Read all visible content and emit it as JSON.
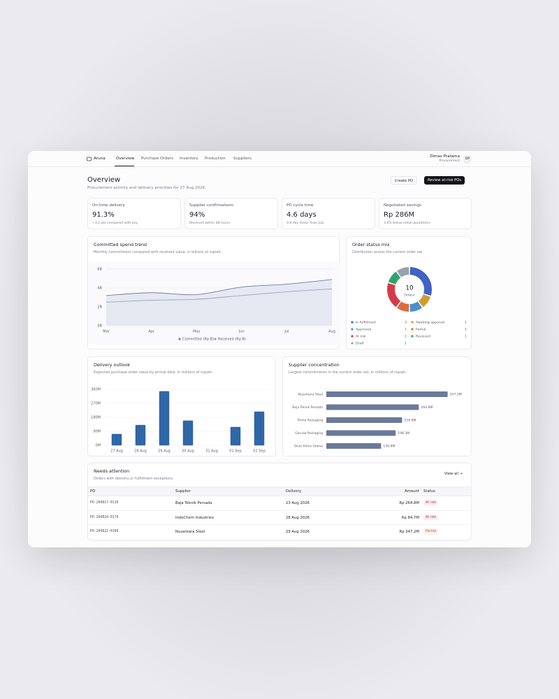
{
  "nav": {
    "brand": "Aruna",
    "tabs": [
      "Overview",
      "Purchase Orders",
      "Inventory",
      "Production",
      "Suppliers"
    ],
    "user": {
      "name": "Dimas Pratama",
      "role": "Procurement",
      "initials": "DP"
    }
  },
  "header": {
    "title": "Overview",
    "subtitle": "Procurement activity and delivery priorities for 27 Aug 2026.",
    "actions": [
      "Create PO",
      "Review at-risk POs"
    ]
  },
  "kpis": [
    {
      "label": "On-time delivery",
      "value": "91.3%",
      "note": "+3.2 pts compared with July"
    },
    {
      "label": "Supplier confirmations",
      "value": "94%",
      "note": "Received within 48 hours"
    },
    {
      "label": "PO cycle time",
      "value": "4.6 days",
      "note": "0.8 day faster than July"
    },
    {
      "label": "Negotiated savings",
      "value": "Rp 286M",
      "note": "3.6% below initial quotations"
    }
  ],
  "chart_data": [
    {
      "type": "line",
      "title": "Committed spend trend",
      "subtitle": "Monthly commitment compared with received value, in billions of rupiah.",
      "categories": [
        "Mar",
        "Apr",
        "May",
        "Jun",
        "Jul",
        "Aug"
      ],
      "ylim": [
        0,
        6
      ],
      "yticks": [
        {
          "value": 0,
          "label": "0B"
        },
        {
          "value": 2,
          "label": "2B"
        },
        {
          "value": 4,
          "label": "4B"
        },
        {
          "value": 6,
          "label": "6B"
        }
      ],
      "grid": true,
      "series": [
        {
          "name": "Committed (Rp B)",
          "color": "#6f7ea0",
          "fill": "#e6e8f2",
          "values": [
            3.2,
            3.5,
            3.3,
            4.1,
            4.4,
            4.9
          ]
        },
        {
          "name": "Received (Rp B)",
          "color": "#9ba2ba",
          "values": [
            2.5,
            2.7,
            2.8,
            3.2,
            3.6,
            3.9
          ]
        }
      ]
    },
    {
      "type": "donut",
      "title": "Order status mix",
      "subtitle": "Distribution across the current order set.",
      "total": 10,
      "total_label": "Orders",
      "categories": [
        "In fulfillment",
        "Awaiting approval",
        "Approved",
        "Partial",
        "At risk",
        "Received",
        "Draft"
      ],
      "values": [
        3,
        1,
        1,
        1,
        2,
        1,
        1
      ],
      "colors": [
        "#3f63c6",
        "#d39b2c",
        "#4b8fd0",
        "#de6b3e",
        "#d63a4a",
        "#2fa36b",
        "#9aa0ad"
      ]
    },
    {
      "type": "bar",
      "title": "Delivery outlook",
      "subtitle": "Expected purchase-order value by arrival date, in millions of rupiah.",
      "categories": [
        "27 Aug",
        "28 Aug",
        "29 Aug",
        "30 Aug",
        "31 Aug",
        "01 Sep",
        "02 Sep"
      ],
      "values": [
        72,
        130,
        347.2,
        158,
        0,
        117,
        216
      ],
      "color": "#2f68a8",
      "ylim": [
        0,
        360
      ],
      "yticks": [
        {
          "value": 0,
          "label": "0M"
        },
        {
          "value": 90,
          "label": "90M"
        },
        {
          "value": 180,
          "label": "180M"
        },
        {
          "value": 270,
          "label": "270M"
        },
        {
          "value": 360,
          "label": "360M"
        }
      ],
      "grid": true
    },
    {
      "type": "hbar",
      "title": "Supplier concentration",
      "subtitle": "Largest commitments in the current order set, in millions of rupiah.",
      "categories": [
        "Nusantara Steel",
        "Baja Teknik Persada",
        "Prima Packaging",
        "Garuda Packaging",
        "Sinar Kimia Utama"
      ],
      "values": [
        347.2,
        264.8,
        216.8,
        198.3,
        156.8
      ],
      "value_labels": [
        "347.2M",
        "264.8M",
        "216.8M",
        "198.3M",
        "156.8M"
      ],
      "color": "#6b7a99",
      "xlim": [
        0,
        350
      ],
      "grid": true
    }
  ],
  "attention": {
    "title": "Needs attention",
    "subtitle": "Orders with delivery or fulfillment exceptions.",
    "link": "View all",
    "columns": [
      "PO",
      "Supplier",
      "Delivery",
      "Amount",
      "Status"
    ],
    "rows": [
      [
        "PO-260817-0116",
        "Baja Teknik Persada",
        "23 Aug 2026",
        "Rp 264.8M",
        "At risk"
      ],
      [
        "PO-260824-0179",
        "IndoChem Industries",
        "28 Aug 2026",
        "Rp 84.7M",
        "At risk"
      ],
      [
        "PO-260822-0168",
        "Nusantara Steel",
        "29 Aug 2026",
        "Rp 347.2M",
        "Partial"
      ]
    ]
  }
}
